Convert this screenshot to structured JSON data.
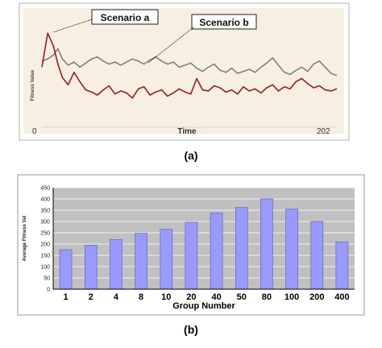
{
  "chart_data": [
    {
      "type": "line",
      "panel_label": "(a)",
      "xlabel": "Time",
      "ylabel": "Fitness Value",
      "x_ticks": [
        "0",
        "202"
      ],
      "xlim": [
        0,
        202
      ],
      "grid": false,
      "annotations": [
        "Scenario a",
        "Scenario b"
      ],
      "series": [
        {
          "name": "Scenario a",
          "color": "#9c1a2a",
          "x": [
            0,
            4,
            8,
            11,
            14,
            18,
            22,
            26,
            30,
            34,
            38,
            42,
            46,
            50,
            54,
            58,
            62,
            66,
            70,
            74,
            78,
            82,
            86,
            90,
            94,
            98,
            102,
            106,
            110,
            114,
            118,
            122,
            126,
            130,
            134,
            138,
            142,
            146,
            150,
            154,
            158,
            162,
            166,
            170,
            174,
            178,
            182,
            186,
            190,
            194,
            198,
            202
          ],
          "y": [
            52,
            85,
            72,
            55,
            42,
            35,
            47,
            38,
            30,
            28,
            25,
            30,
            34,
            26,
            29,
            27,
            22,
            31,
            33,
            25,
            28,
            30,
            24,
            27,
            31,
            28,
            26,
            41,
            30,
            29,
            34,
            32,
            28,
            30,
            26,
            33,
            29,
            31,
            27,
            32,
            35,
            29,
            33,
            31,
            38,
            41,
            36,
            32,
            34,
            30,
            29,
            31
          ]
        },
        {
          "name": "Scenario b",
          "color": "#808080",
          "x": [
            0,
            4,
            8,
            11,
            14,
            18,
            22,
            26,
            30,
            34,
            38,
            42,
            46,
            50,
            54,
            58,
            62,
            66,
            70,
            74,
            78,
            82,
            86,
            90,
            94,
            98,
            102,
            106,
            110,
            114,
            118,
            122,
            126,
            130,
            134,
            138,
            142,
            146,
            150,
            154,
            158,
            162,
            166,
            170,
            174,
            178,
            182,
            186,
            190,
            194,
            198,
            202
          ],
          "y": [
            58,
            60,
            64,
            70,
            60,
            54,
            57,
            52,
            56,
            60,
            62,
            58,
            55,
            57,
            54,
            57,
            60,
            58,
            55,
            59,
            62,
            58,
            55,
            57,
            52,
            54,
            56,
            51,
            48,
            52,
            55,
            49,
            47,
            51,
            46,
            48,
            50,
            47,
            52,
            56,
            61,
            54,
            47,
            45,
            49,
            52,
            48,
            55,
            58,
            52,
            46,
            44
          ]
        }
      ]
    },
    {
      "type": "bar",
      "panel_label": "(b)",
      "xlabel": "Group Number",
      "ylabel": "Average Fitness Val",
      "categories": [
        "1",
        "2",
        "4",
        "8",
        "10",
        "20",
        "40",
        "50",
        "80",
        "100",
        "200",
        "400"
      ],
      "values": [
        175,
        195,
        220,
        248,
        265,
        297,
        338,
        362,
        400,
        355,
        300,
        210
      ],
      "y_ticks": [
        "0",
        "50",
        "100",
        "150",
        "200",
        "250",
        "300",
        "350",
        "400",
        "450"
      ],
      "ylim": [
        0,
        450
      ],
      "grid": true,
      "bar_color": "#9999ff"
    }
  ]
}
